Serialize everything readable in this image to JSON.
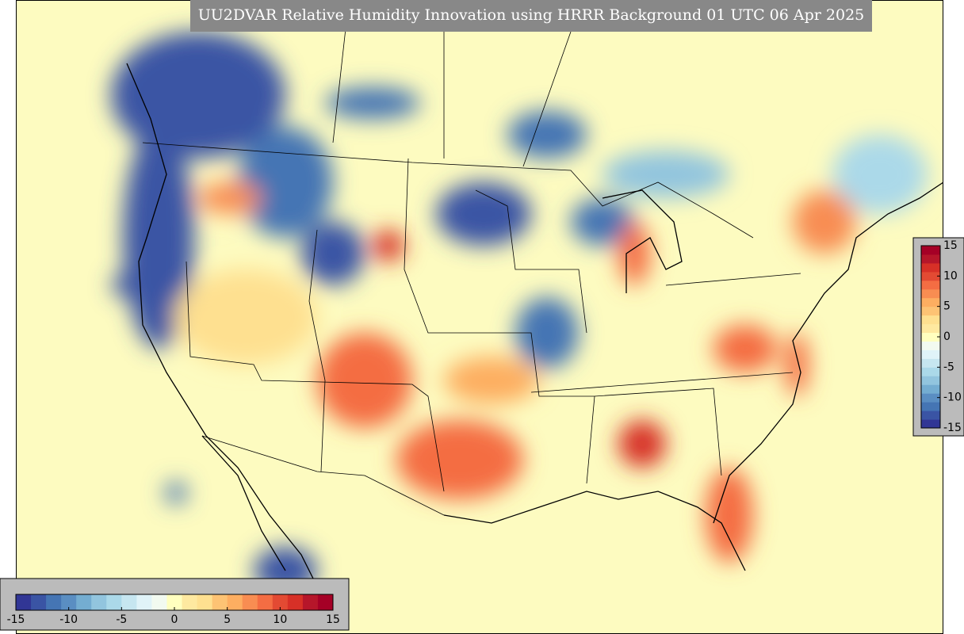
{
  "title": "UU2DVAR Relative Humidity Innovation using HRRR Background 01 UTC 06 Apr 2025",
  "colormap": [
    "#313695",
    "#3a54a4",
    "#4575b4",
    "#5a8ec2",
    "#74add1",
    "#92c5de",
    "#abd9e9",
    "#c6e6f0",
    "#e0f3f8",
    "#f2faf0",
    "#ffffbf",
    "#fee9a0",
    "#fee090",
    "#fdc374",
    "#fdae61",
    "#f88d52",
    "#f46d43",
    "#e34a33",
    "#d73027",
    "#b6162a",
    "#a50026"
  ],
  "colorbars": [
    {
      "orientation": "horizontal",
      "range": [
        -15,
        15
      ],
      "ticks": [
        -15,
        -10,
        -5,
        0,
        5,
        10,
        15
      ]
    },
    {
      "orientation": "vertical",
      "range": [
        -15,
        15
      ],
      "ticks": [
        -15,
        -10,
        -5,
        0,
        5,
        10,
        15
      ]
    }
  ]
}
